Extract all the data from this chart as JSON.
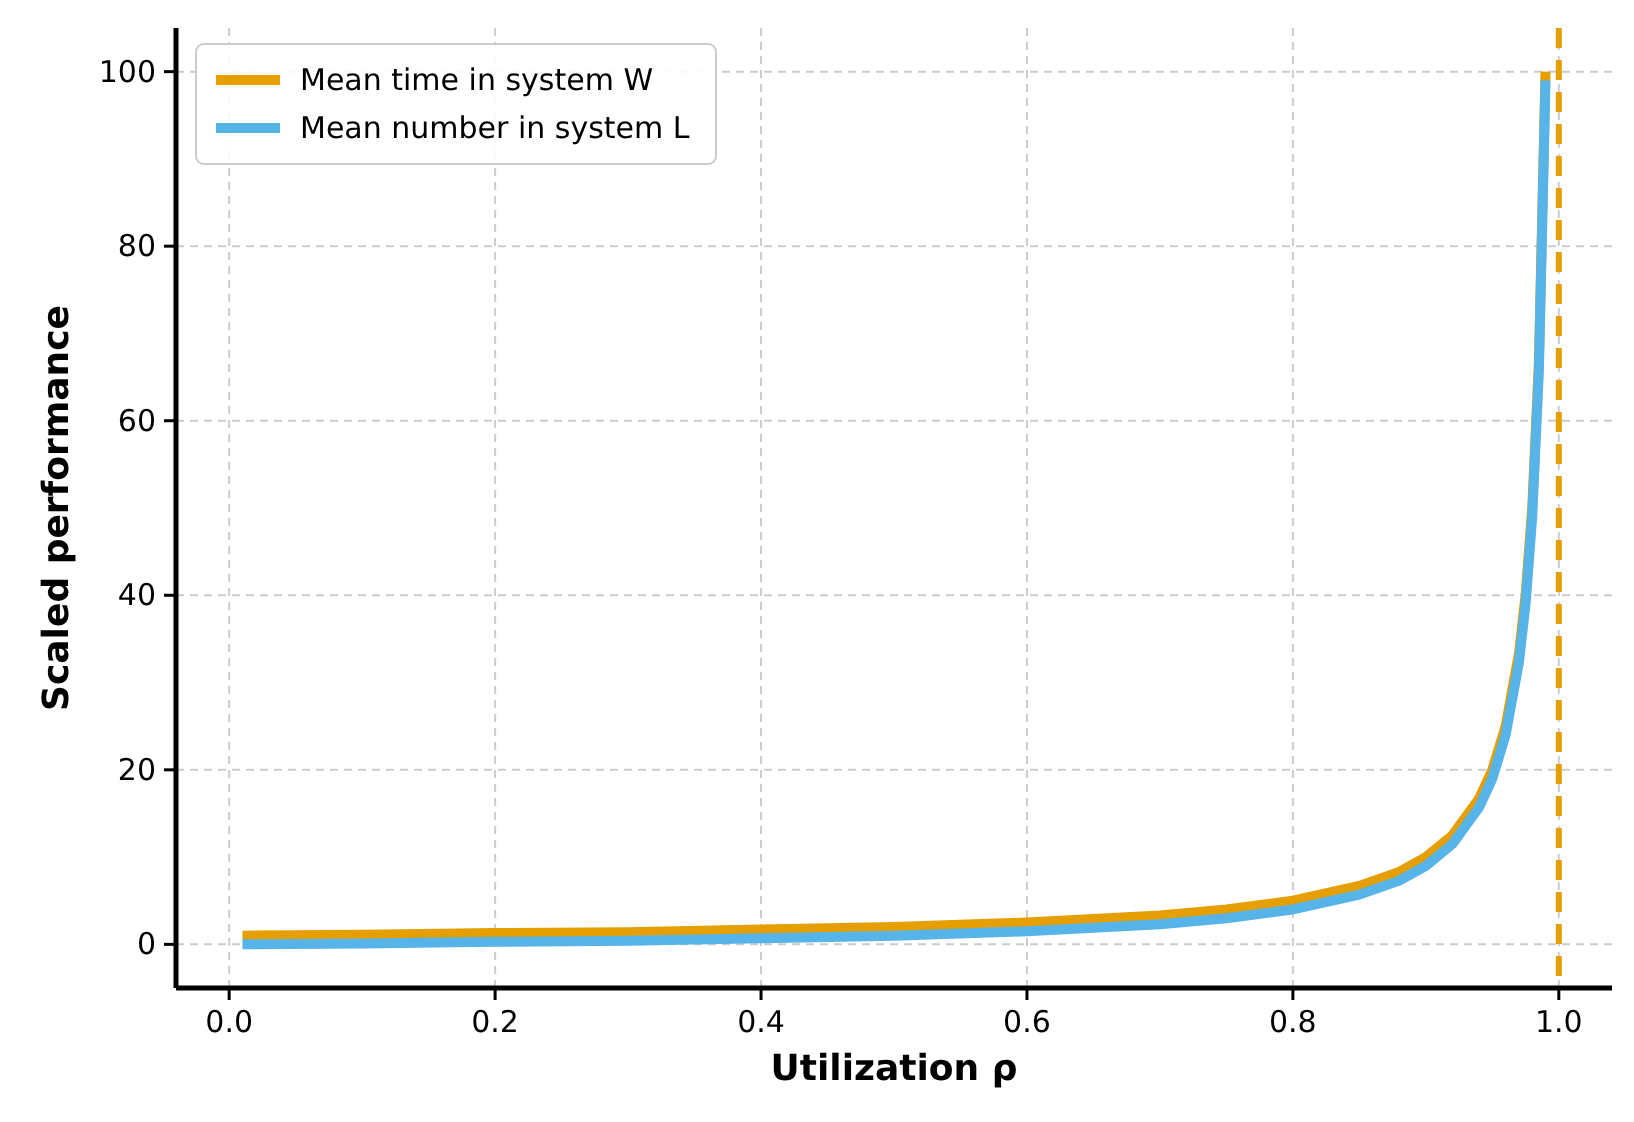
{
  "chart_data": {
    "type": "line",
    "xlabel": "Utilization ρ",
    "ylabel": "Scaled performance",
    "x": [
      0.01,
      0.1,
      0.2,
      0.3,
      0.4,
      0.5,
      0.6,
      0.7,
      0.75,
      0.8,
      0.85,
      0.88,
      0.9,
      0.92,
      0.94,
      0.95,
      0.96,
      0.97,
      0.975,
      0.98,
      0.985,
      0.99
    ],
    "series": [
      {
        "name": "Mean time in system  W",
        "color": "#e69f00",
        "values": [
          1.0,
          1.1,
          1.3,
          1.4,
          1.7,
          2.0,
          2.5,
          3.3,
          4.0,
          5.0,
          6.7,
          8.3,
          10,
          12.5,
          16.7,
          20,
          25,
          33.3,
          40,
          50,
          66.7,
          100
        ]
      },
      {
        "name": "Mean number in system  L",
        "color": "#56b4e9",
        "values": [
          0.0,
          0.1,
          0.3,
          0.4,
          0.7,
          1.0,
          1.5,
          2.3,
          3.0,
          4.0,
          5.7,
          7.3,
          9,
          11.5,
          15.7,
          19,
          24,
          32.3,
          39,
          49,
          65.7,
          99
        ]
      }
    ],
    "xlim": [
      -0.04,
      1.04
    ],
    "ylim": [
      -5,
      105
    ],
    "xticks": [
      {
        "value": 0,
        "label": "0.0"
      },
      0.2,
      0.4,
      0.6,
      0.8,
      {
        "value": 1,
        "label": "1.0"
      }
    ],
    "yticks": [
      0,
      20,
      40,
      60,
      80,
      100
    ],
    "ref_lines": [
      {
        "axis": "x",
        "value": 1,
        "color": "#e69f00",
        "line_style": "dashed"
      }
    ],
    "grid": true,
    "legend": "top left",
    "line_style": "solid",
    "marker": "none"
  }
}
